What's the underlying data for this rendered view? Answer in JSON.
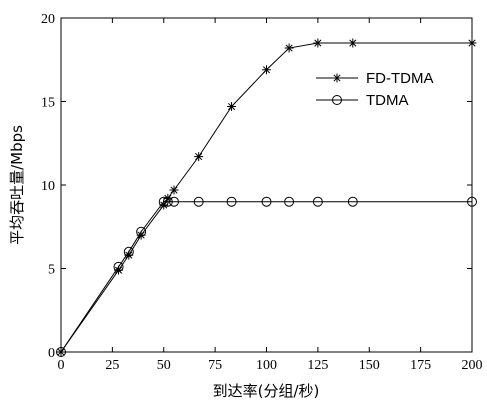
{
  "chart_data": {
    "type": "line",
    "title": "",
    "xlabel": "到达率(分组/秒)",
    "ylabel": "平均吞吐量/Mbps",
    "xlim": [
      0,
      200
    ],
    "ylim": [
      0,
      20
    ],
    "x_ticks": [
      "0",
      "25",
      "50",
      "75",
      "100",
      "125",
      "150",
      "175",
      "200"
    ],
    "y_ticks": [
      "0",
      "5",
      "10",
      "15",
      "20"
    ],
    "grid": false,
    "legend_position": "top-right",
    "series": [
      {
        "name": "FD-TDMA",
        "marker": "asterisk",
        "color": "#000000",
        "x": [
          0,
          28,
          33,
          39,
          50,
          52,
          55,
          67,
          83,
          100,
          111,
          125,
          142,
          200
        ],
        "y": [
          0,
          4.9,
          5.8,
          7.0,
          8.8,
          9.2,
          9.7,
          11.7,
          14.7,
          16.9,
          18.2,
          18.5,
          18.5,
          18.5
        ]
      },
      {
        "name": "TDMA",
        "marker": "circle",
        "color": "#000000",
        "x": [
          0,
          28,
          33,
          39,
          50,
          52,
          55,
          67,
          83,
          100,
          111,
          125,
          142,
          200
        ],
        "y": [
          0,
          5.1,
          6.0,
          7.2,
          9.0,
          9.0,
          9.0,
          9.0,
          9.0,
          9.0,
          9.0,
          9.0,
          9.0,
          9.0
        ]
      }
    ]
  }
}
